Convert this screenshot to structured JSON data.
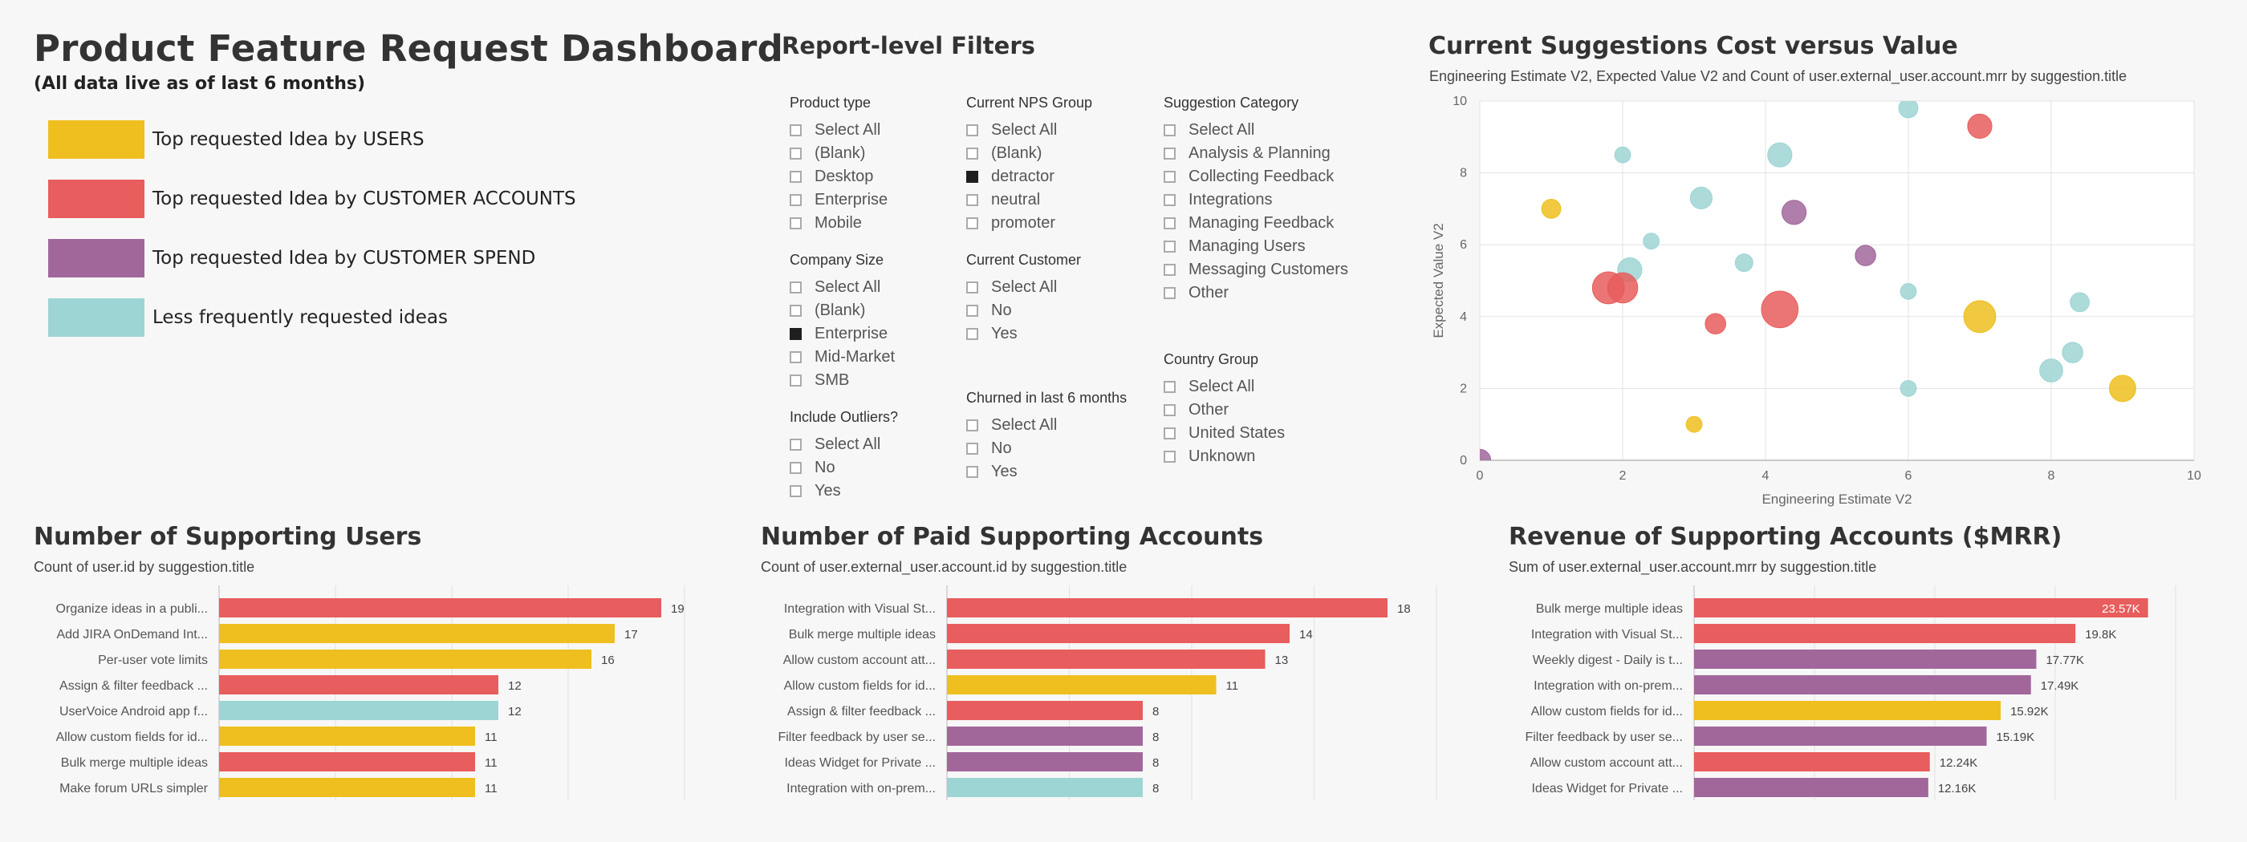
{
  "header": {
    "title": "Product Feature Request Dashboard",
    "subtitle": "(All data live as of last 6 months)"
  },
  "legend": [
    {
      "label": "Top requested Idea by USERS",
      "color": "#eebf1e"
    },
    {
      "label": "Top requested Idea by CUSTOMER ACCOUNTS",
      "color": "#e85d5d"
    },
    {
      "label": "Top requested Idea by CUSTOMER SPEND",
      "color": "#a1679b"
    },
    {
      "label": "Less frequently requested ideas",
      "color": "#9dd5d4"
    }
  ],
  "filters": {
    "title": "Report-level Filters",
    "groups": [
      {
        "label": "Product type",
        "options": [
          {
            "label": "Select All",
            "checked": false
          },
          {
            "label": "(Blank)",
            "checked": false
          },
          {
            "label": "Desktop",
            "checked": false
          },
          {
            "label": "Enterprise",
            "checked": false
          },
          {
            "label": "Mobile",
            "checked": false
          }
        ]
      },
      {
        "label": "Company Size",
        "options": [
          {
            "label": "Select All",
            "checked": false
          },
          {
            "label": "(Blank)",
            "checked": false
          },
          {
            "label": "Enterprise",
            "checked": true
          },
          {
            "label": "Mid-Market",
            "checked": false
          },
          {
            "label": "SMB",
            "checked": false
          }
        ]
      },
      {
        "label": "Include Outliers?",
        "options": [
          {
            "label": "Select All",
            "checked": false
          },
          {
            "label": "No",
            "checked": false
          },
          {
            "label": "Yes",
            "checked": false
          }
        ]
      },
      {
        "label": "Current NPS Group",
        "options": [
          {
            "label": "Select All",
            "checked": false
          },
          {
            "label": "(Blank)",
            "checked": false
          },
          {
            "label": "detractor",
            "checked": true
          },
          {
            "label": "neutral",
            "checked": false
          },
          {
            "label": "promoter",
            "checked": false
          }
        ]
      },
      {
        "label": "Current Customer",
        "options": [
          {
            "label": "Select All",
            "checked": false
          },
          {
            "label": "No",
            "checked": false
          },
          {
            "label": "Yes",
            "checked": false
          }
        ]
      },
      {
        "label": "Churned in last 6 months",
        "options": [
          {
            "label": "Select All",
            "checked": false
          },
          {
            "label": "No",
            "checked": false
          },
          {
            "label": "Yes",
            "checked": false
          }
        ]
      },
      {
        "label": "Suggestion Category",
        "options": [
          {
            "label": "Select All",
            "checked": false
          },
          {
            "label": "Analysis & Planning",
            "checked": false
          },
          {
            "label": "Collecting Feedback",
            "checked": false
          },
          {
            "label": "Integrations",
            "checked": false
          },
          {
            "label": "Managing Feedback",
            "checked": false
          },
          {
            "label": "Managing Users",
            "checked": false
          },
          {
            "label": "Messaging Customers",
            "checked": false
          },
          {
            "label": "Other",
            "checked": false
          }
        ]
      },
      {
        "label": "Country Group",
        "options": [
          {
            "label": "Select All",
            "checked": false
          },
          {
            "label": "Other",
            "checked": false
          },
          {
            "label": "United States",
            "checked": false
          },
          {
            "label": "Unknown",
            "checked": false
          }
        ]
      }
    ]
  },
  "scatter": {
    "title": "Current Suggestions Cost versus Value",
    "subtitle": "Engineering Estimate V2, Expected Value V2 and Count of user.external_user.account.mrr by suggestion.title"
  },
  "users_chart": {
    "title": "Number of Supporting Users",
    "subtitle": "Count of user.id by suggestion.title"
  },
  "accounts_chart": {
    "title": "Number of Paid Supporting Accounts",
    "subtitle": "Count of user.external_user.account.id by suggestion.title"
  },
  "revenue_chart": {
    "title": "Revenue of Supporting Accounts ($MRR)",
    "subtitle": "Sum of user.external_user.account.mrr by suggestion.title"
  },
  "chart_data": [
    {
      "type": "scatter",
      "xlabel": "Engineering Estimate V2",
      "ylabel": "Expected Value V2",
      "xlim": [
        0,
        10
      ],
      "ylim": [
        0,
        10
      ],
      "xticks": [
        "0",
        "2",
        "4",
        "6",
        "8",
        "10"
      ],
      "yticks": [
        "0",
        "2",
        "4",
        "6",
        "8",
        "10"
      ],
      "grid": true,
      "points": [
        {
          "x": 6.0,
          "y": 9.8,
          "size": 3,
          "group": "less"
        },
        {
          "x": 7.0,
          "y": 9.3,
          "size": 5,
          "group": "accounts"
        },
        {
          "x": 2.0,
          "y": 8.5,
          "size": 2,
          "group": "less"
        },
        {
          "x": 4.2,
          "y": 8.5,
          "size": 5,
          "group": "less"
        },
        {
          "x": 3.1,
          "y": 7.3,
          "size": 4,
          "group": "less"
        },
        {
          "x": 4.4,
          "y": 6.9,
          "size": 5,
          "group": "spend"
        },
        {
          "x": 1.0,
          "y": 7.0,
          "size": 3,
          "group": "users"
        },
        {
          "x": 2.4,
          "y": 6.1,
          "size": 2,
          "group": "less"
        },
        {
          "x": 3.7,
          "y": 5.5,
          "size": 2.5,
          "group": "less"
        },
        {
          "x": 5.4,
          "y": 5.7,
          "size": 3.5,
          "group": "spend"
        },
        {
          "x": 2.1,
          "y": 5.3,
          "size": 5,
          "group": "less"
        },
        {
          "x": 1.8,
          "y": 4.8,
          "size": 9,
          "group": "accounts"
        },
        {
          "x": 2.0,
          "y": 4.8,
          "size": 8,
          "group": "accounts"
        },
        {
          "x": 6.0,
          "y": 4.7,
          "size": 2,
          "group": "less"
        },
        {
          "x": 4.2,
          "y": 4.2,
          "size": 12,
          "group": "accounts"
        },
        {
          "x": 3.3,
          "y": 3.8,
          "size": 3.5,
          "group": "accounts"
        },
        {
          "x": 7.0,
          "y": 4.0,
          "size": 9,
          "group": "users"
        },
        {
          "x": 8.4,
          "y": 4.4,
          "size": 3,
          "group": "less"
        },
        {
          "x": 8.3,
          "y": 3.0,
          "size": 3.5,
          "group": "less"
        },
        {
          "x": 8.0,
          "y": 2.5,
          "size": 4.5,
          "group": "less"
        },
        {
          "x": 9.0,
          "y": 2.0,
          "size": 6,
          "group": "users"
        },
        {
          "x": 6.0,
          "y": 2.0,
          "size": 2,
          "group": "less"
        },
        {
          "x": 3.0,
          "y": 1.0,
          "size": 2,
          "group": "users"
        },
        {
          "x": 0.0,
          "y": 0.0,
          "size": 4,
          "group": "spend"
        }
      ]
    },
    {
      "type": "bar",
      "orientation": "horizontal",
      "categories": [
        "Organize ideas in a publi...",
        "Add JIRA OnDemand Int...",
        "Per-user vote limits",
        "Assign & filter feedback ...",
        "UserVoice Android app f...",
        "Allow custom fields for id...",
        "Bulk merge multiple ideas",
        "Make forum URLs simpler"
      ],
      "values": [
        19,
        17,
        16,
        12,
        12,
        11,
        11,
        11
      ],
      "value_labels": [
        "19",
        "17",
        "16",
        "12",
        "12",
        "11",
        "11",
        "11"
      ],
      "groups": [
        "accounts",
        "users",
        "users",
        "accounts",
        "less",
        "users",
        "accounts",
        "users"
      ],
      "xlim": [
        0,
        20
      ],
      "grid": true
    },
    {
      "type": "bar",
      "orientation": "horizontal",
      "categories": [
        "Integration with Visual St...",
        "Bulk merge multiple ideas",
        "Allow custom account att...",
        "Allow custom fields for id...",
        "Assign & filter feedback ...",
        "Filter feedback by user se...",
        "Ideas Widget for Private ...",
        "Integration with on-prem..."
      ],
      "values": [
        18,
        14,
        13,
        11,
        8,
        8,
        8,
        8
      ],
      "value_labels": [
        "18",
        "14",
        "13",
        "11",
        "8",
        "8",
        "8",
        "8"
      ],
      "groups": [
        "accounts",
        "accounts",
        "accounts",
        "users",
        "accounts",
        "spend",
        "spend",
        "less"
      ],
      "xlim": [
        0,
        20
      ],
      "grid": true
    },
    {
      "type": "bar",
      "orientation": "horizontal",
      "categories": [
        "Bulk merge multiple ideas",
        "Integration with Visual St...",
        "Weekly digest - Daily is t...",
        "Integration with on-prem...",
        "Allow custom fields for id...",
        "Filter feedback by user se...",
        "Allow custom account att...",
        "Ideas Widget for Private ..."
      ],
      "values": [
        23.57,
        19.8,
        17.77,
        17.49,
        15.92,
        15.19,
        12.24,
        12.16
      ],
      "value_labels": [
        "23.57K",
        "19.8K",
        "17.77K",
        "17.49K",
        "15.92K",
        "15.19K",
        "12.24K",
        "12.16K"
      ],
      "groups": [
        "accounts",
        "accounts",
        "spend",
        "spend",
        "users",
        "spend",
        "accounts",
        "spend"
      ],
      "unit": "K",
      "xlim": [
        0,
        25
      ],
      "grid": true
    }
  ],
  "colors": {
    "users": "#eebf1e",
    "accounts": "#e85d5d",
    "spend": "#a1679b",
    "less": "#9dd5d4"
  }
}
